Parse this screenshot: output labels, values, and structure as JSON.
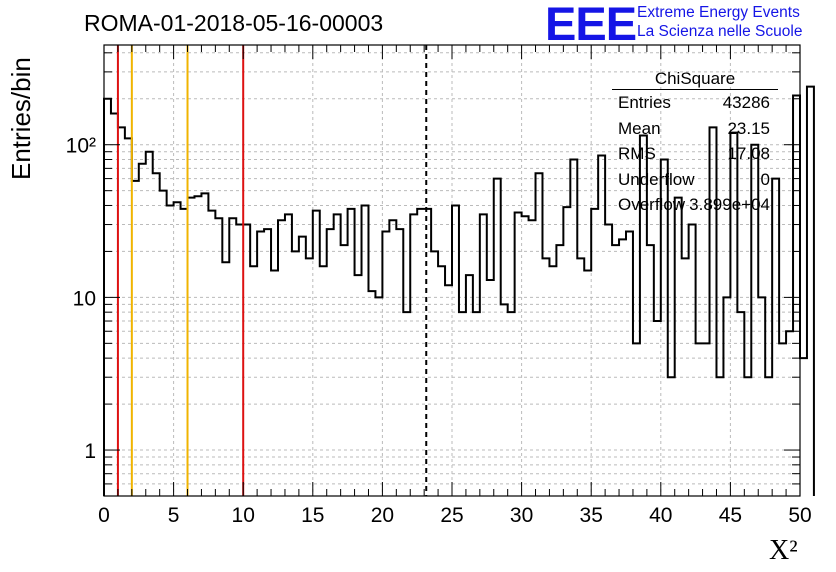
{
  "header": {
    "title": "ROMA-01-2018-05-16-00003",
    "logo_text": "EEE",
    "logo_line1": "Extreme Energy Events",
    "logo_line2": "La Scienza nelle Scuole"
  },
  "stats_box": {
    "title": "ChiSquare",
    "rows": [
      {
        "label": "Entries",
        "value": "43286"
      },
      {
        "label": "Mean",
        "value": "23.15"
      },
      {
        "label": "RMS",
        "value": "17.08"
      },
      {
        "label": "Underflow",
        "value": "0"
      },
      {
        "label": "Overflow",
        "value": "3.899e+04"
      }
    ]
  },
  "colors": {
    "histogram": "#000000",
    "grid": "#bbbbbb",
    "red_marker": "#dd1111",
    "yellow_marker": "#f0b400",
    "mean_marker": "#000000",
    "logo": "#1515e6"
  },
  "chart_data": {
    "type": "bar",
    "style": "step-histogram",
    "xlabel": "X²",
    "ylabel": "Entries/bin",
    "xlim": [
      0,
      50
    ],
    "ylim": [
      0.5,
      450
    ],
    "y_scale": "log",
    "grid": true,
    "x_ticks": [
      0,
      5,
      10,
      15,
      20,
      25,
      30,
      35,
      40,
      45,
      50
    ],
    "x_tick_labels": [
      "0",
      "5",
      "10",
      "15",
      "20",
      "25",
      "30",
      "35",
      "40",
      "45",
      "50"
    ],
    "y_ticks": [
      1,
      10,
      100
    ],
    "y_tick_labels": [
      "1",
      "10",
      "10²"
    ],
    "bin_width": 0.5,
    "values": [
      200,
      160,
      130,
      110,
      58,
      75,
      90,
      65,
      50,
      40,
      42,
      38,
      45,
      46,
      48,
      37,
      33,
      17,
      33,
      30,
      30,
      16,
      27,
      28,
      15,
      32,
      35,
      20,
      25,
      18,
      37,
      16,
      28,
      35,
      22,
      38,
      14,
      40,
      11,
      10,
      27,
      32,
      28,
      8,
      35,
      38,
      38,
      20,
      16,
      12,
      40,
      8,
      14,
      8,
      35,
      13,
      60,
      9,
      8,
      36,
      34,
      32,
      65,
      18,
      16,
      22,
      39,
      80,
      18,
      15,
      38,
      85,
      30,
      22,
      24,
      27,
      5,
      115,
      22,
      7,
      80,
      3,
      45,
      18,
      30,
      5,
      5,
      130,
      3,
      10,
      120,
      8,
      3,
      100,
      10,
      3,
      60,
      5,
      6,
      210,
      4,
      240
    ],
    "vertical_markers": [
      {
        "x": 1,
        "color": "red",
        "style": "solid"
      },
      {
        "x": 2,
        "color": "yellow",
        "style": "solid"
      },
      {
        "x": 6,
        "color": "yellow",
        "style": "solid"
      },
      {
        "x": 10,
        "color": "red",
        "style": "solid"
      },
      {
        "x": 23.15,
        "color": "black",
        "style": "dashed"
      }
    ]
  }
}
